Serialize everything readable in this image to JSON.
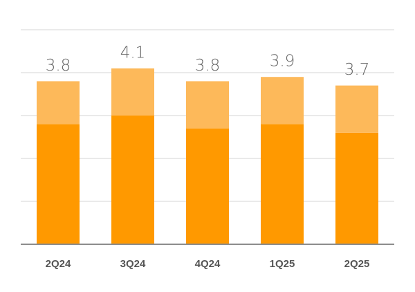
{
  "chart_data": {
    "type": "stacked_bar",
    "categories": [
      "2Q24",
      "3Q24",
      "4Q24",
      "1Q25",
      "2Q25"
    ],
    "series": [
      {
        "color": "#ff9900",
        "values": [
          2.8,
          3.0,
          2.7,
          2.8,
          2.6
        ]
      },
      {
        "color": "#fdb95a",
        "values": [
          1.0,
          1.1,
          1.1,
          1.1,
          1.1
        ]
      }
    ],
    "totals": [
      3.8,
      4.1,
      3.8,
      3.9,
      3.7
    ],
    "ylim": [
      0,
      5
    ],
    "yticks": [
      0,
      1,
      2,
      3,
      4,
      5
    ],
    "grid": true
  }
}
